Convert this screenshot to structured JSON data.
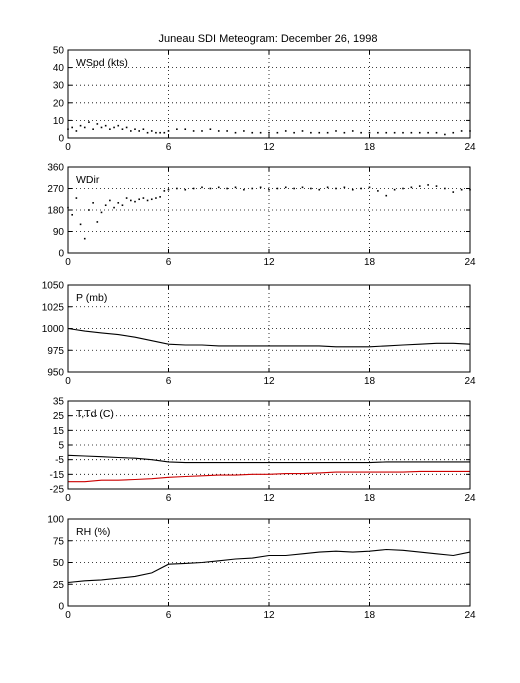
{
  "figure": {
    "title": "Juneau SDI Meteogram:   December 26, 1998"
  },
  "chart_data": [
    {
      "type": "scatter",
      "label": "WSpd (kts)",
      "xlim": [
        0,
        24
      ],
      "xticks": [
        0,
        6,
        12,
        18,
        24
      ],
      "ylim": [
        0,
        50
      ],
      "yticks": [
        0,
        10,
        20,
        30,
        40,
        50
      ],
      "grid": true,
      "series": [
        {
          "color": "#000000",
          "points": [
            [
              0,
              5
            ],
            [
              0.25,
              6
            ],
            [
              0.5,
              4
            ],
            [
              0.75,
              7
            ],
            [
              1,
              6
            ],
            [
              1.25,
              9
            ],
            [
              1.5,
              5
            ],
            [
              1.75,
              8
            ],
            [
              2,
              6
            ],
            [
              2.25,
              7
            ],
            [
              2.5,
              5
            ],
            [
              2.75,
              6
            ],
            [
              3,
              7
            ],
            [
              3.25,
              5
            ],
            [
              3.5,
              6
            ],
            [
              3.75,
              4
            ],
            [
              4,
              5
            ],
            [
              4.25,
              4
            ],
            [
              4.5,
              5
            ],
            [
              4.75,
              3
            ],
            [
              5,
              4
            ],
            [
              5.25,
              3
            ],
            [
              5.5,
              3
            ],
            [
              5.75,
              3
            ],
            [
              6,
              4
            ],
            [
              6.5,
              5
            ],
            [
              7,
              5
            ],
            [
              7.5,
              4
            ],
            [
              8,
              4
            ],
            [
              8.5,
              5
            ],
            [
              9,
              4
            ],
            [
              9.5,
              4
            ],
            [
              10,
              3
            ],
            [
              10.5,
              4
            ],
            [
              11,
              3
            ],
            [
              11.5,
              3
            ],
            [
              12,
              3
            ],
            [
              12.5,
              3
            ],
            [
              13,
              4
            ],
            [
              13.5,
              3
            ],
            [
              14,
              4
            ],
            [
              14.5,
              3
            ],
            [
              15,
              3
            ],
            [
              15.5,
              3
            ],
            [
              16,
              4
            ],
            [
              16.5,
              3
            ],
            [
              17,
              4
            ],
            [
              17.5,
              3
            ],
            [
              18,
              3
            ],
            [
              18.5,
              3
            ],
            [
              19,
              3
            ],
            [
              19.5,
              3
            ],
            [
              20,
              3
            ],
            [
              20.5,
              3
            ],
            [
              21,
              3
            ],
            [
              21.5,
              3
            ],
            [
              22,
              3
            ],
            [
              22.5,
              2
            ],
            [
              23,
              3
            ],
            [
              23.5,
              4
            ],
            [
              24,
              4
            ]
          ]
        }
      ]
    },
    {
      "type": "scatter",
      "label": "WDir",
      "xlim": [
        0,
        24
      ],
      "xticks": [
        0,
        6,
        12,
        18,
        24
      ],
      "ylim": [
        0,
        360
      ],
      "yticks": [
        0,
        90,
        180,
        270,
        360
      ],
      "grid": true,
      "series": [
        {
          "color": "#000000",
          "points": [
            [
              0,
              190
            ],
            [
              0.25,
              160
            ],
            [
              0.5,
              230
            ],
            [
              0.75,
              120
            ],
            [
              1,
              60
            ],
            [
              1.25,
              180
            ],
            [
              1.5,
              210
            ],
            [
              1.75,
              130
            ],
            [
              2,
              170
            ],
            [
              2.25,
              200
            ],
            [
              2.5,
              220
            ],
            [
              2.75,
              190
            ],
            [
              3,
              210
            ],
            [
              3.25,
              200
            ],
            [
              3.5,
              230
            ],
            [
              3.75,
              220
            ],
            [
              4,
              215
            ],
            [
              4.25,
              225
            ],
            [
              4.5,
              230
            ],
            [
              4.75,
              220
            ],
            [
              5,
              225
            ],
            [
              5.25,
              230
            ],
            [
              5.5,
              235
            ],
            [
              5.75,
              260
            ],
            [
              6,
              265
            ],
            [
              6.5,
              270
            ],
            [
              7,
              265
            ],
            [
              7.5,
              270
            ],
            [
              8,
              275
            ],
            [
              8.5,
              270
            ],
            [
              9,
              275
            ],
            [
              9.5,
              270
            ],
            [
              10,
              275
            ],
            [
              10.5,
              265
            ],
            [
              11,
              270
            ],
            [
              11.5,
              275
            ],
            [
              12,
              265
            ],
            [
              12.5,
              270
            ],
            [
              13,
              275
            ],
            [
              13.5,
              270
            ],
            [
              14,
              275
            ],
            [
              14.5,
              270
            ],
            [
              15,
              265
            ],
            [
              15.5,
              275
            ],
            [
              16,
              270
            ],
            [
              16.5,
              275
            ],
            [
              17,
              265
            ],
            [
              17.5,
              270
            ],
            [
              18,
              275
            ],
            [
              18.5,
              260
            ],
            [
              19,
              240
            ],
            [
              19.5,
              265
            ],
            [
              20,
              270
            ],
            [
              20.5,
              275
            ],
            [
              21,
              280
            ],
            [
              21.5,
              285
            ],
            [
              22,
              280
            ],
            [
              22.5,
              270
            ],
            [
              23,
              255
            ],
            [
              23.5,
              265
            ],
            [
              24,
              265
            ]
          ]
        }
      ]
    },
    {
      "type": "line",
      "label": "P (mb)",
      "xlim": [
        0,
        24
      ],
      "xticks": [
        0,
        6,
        12,
        18,
        24
      ],
      "ylim": [
        950,
        1050
      ],
      "yticks": [
        950,
        975,
        1000,
        1025,
        1050
      ],
      "grid": true,
      "series": [
        {
          "color": "#000000",
          "points": [
            [
              0,
              1000
            ],
            [
              1,
              997
            ],
            [
              2,
              995
            ],
            [
              3,
              993
            ],
            [
              4,
              990
            ],
            [
              5,
              986
            ],
            [
              6,
              982
            ],
            [
              7,
              981
            ],
            [
              8,
              981
            ],
            [
              9,
              980
            ],
            [
              10,
              980
            ],
            [
              11,
              980
            ],
            [
              12,
              980
            ],
            [
              13,
              980
            ],
            [
              14,
              980
            ],
            [
              15,
              980
            ],
            [
              16,
              979
            ],
            [
              17,
              979
            ],
            [
              18,
              979
            ],
            [
              19,
              980
            ],
            [
              20,
              981
            ],
            [
              21,
              982
            ],
            [
              22,
              983
            ],
            [
              23,
              983
            ],
            [
              24,
              982
            ]
          ]
        }
      ]
    },
    {
      "type": "line",
      "label": "T,Td (C)",
      "xlim": [
        0,
        24
      ],
      "xticks": [
        0,
        6,
        12,
        18,
        24
      ],
      "ylim": [
        -25,
        35
      ],
      "yticks": [
        -25,
        -15,
        -5,
        5,
        15,
        25,
        35
      ],
      "grid": true,
      "series": [
        {
          "color": "#000000",
          "points": [
            [
              0,
              -2
            ],
            [
              1,
              -2.5
            ],
            [
              2,
              -3
            ],
            [
              3,
              -3.5
            ],
            [
              4,
              -4
            ],
            [
              5,
              -5
            ],
            [
              6,
              -6.5
            ],
            [
              7,
              -7
            ],
            [
              8,
              -7
            ],
            [
              9,
              -7
            ],
            [
              10,
              -7
            ],
            [
              11,
              -7
            ],
            [
              12,
              -7
            ],
            [
              13,
              -7
            ],
            [
              14,
              -7
            ],
            [
              15,
              -7
            ],
            [
              16,
              -7
            ],
            [
              17,
              -7
            ],
            [
              18,
              -7
            ],
            [
              19,
              -6.5
            ],
            [
              20,
              -6.5
            ],
            [
              21,
              -6.5
            ],
            [
              22,
              -6.5
            ],
            [
              23,
              -6.5
            ],
            [
              24,
              -6.5
            ]
          ]
        },
        {
          "color": "#cc0000",
          "points": [
            [
              0,
              -20
            ],
            [
              1,
              -20
            ],
            [
              2,
              -19
            ],
            [
              3,
              -19
            ],
            [
              4,
              -18.5
            ],
            [
              5,
              -18
            ],
            [
              6,
              -17
            ],
            [
              7,
              -16.5
            ],
            [
              8,
              -16
            ],
            [
              9,
              -15.5
            ],
            [
              10,
              -15.5
            ],
            [
              11,
              -15
            ],
            [
              12,
              -15
            ],
            [
              13,
              -14.5
            ],
            [
              14,
              -14.5
            ],
            [
              15,
              -14
            ],
            [
              16,
              -13.5
            ],
            [
              17,
              -13.5
            ],
            [
              18,
              -13.5
            ],
            [
              19,
              -13.5
            ],
            [
              20,
              -13.5
            ],
            [
              21,
              -13
            ],
            [
              22,
              -13
            ],
            [
              23,
              -13
            ],
            [
              24,
              -13
            ]
          ]
        }
      ]
    },
    {
      "type": "line",
      "label": "RH (%)",
      "xlim": [
        0,
        24
      ],
      "xticks": [
        0,
        6,
        12,
        18,
        24
      ],
      "ylim": [
        0,
        100
      ],
      "yticks": [
        0,
        25,
        50,
        75,
        100
      ],
      "grid": true,
      "series": [
        {
          "color": "#000000",
          "points": [
            [
              0,
              27
            ],
            [
              1,
              29
            ],
            [
              2,
              30
            ],
            [
              3,
              32
            ],
            [
              4,
              34
            ],
            [
              5,
              38
            ],
            [
              6,
              48
            ],
            [
              7,
              49
            ],
            [
              8,
              50
            ],
            [
              9,
              52
            ],
            [
              10,
              54
            ],
            [
              11,
              55
            ],
            [
              12,
              58
            ],
            [
              13,
              58
            ],
            [
              14,
              60
            ],
            [
              15,
              62
            ],
            [
              16,
              63
            ],
            [
              17,
              62
            ],
            [
              18,
              63
            ],
            [
              19,
              65
            ],
            [
              20,
              64
            ],
            [
              21,
              62
            ],
            [
              22,
              60
            ],
            [
              23,
              58
            ],
            [
              24,
              62
            ]
          ]
        }
      ]
    }
  ]
}
